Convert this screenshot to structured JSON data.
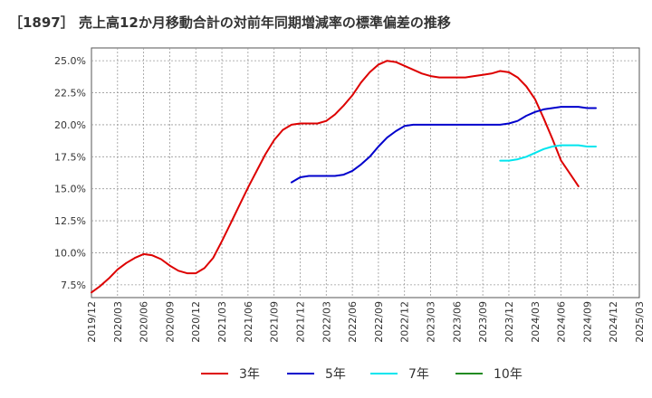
{
  "chart_data": {
    "type": "line",
    "title": "［1897］ 売上高12か月移動合計の対前年同期増減率の標準偏差の推移",
    "xlabel": "",
    "ylabel": "",
    "ylim": [
      6.5,
      26.0
    ],
    "yticks": [
      7.5,
      10.0,
      12.5,
      15.0,
      17.5,
      20.0,
      22.5,
      25.0
    ],
    "ytick_labels": [
      "7.5%",
      "10.0%",
      "12.5%",
      "15.0%",
      "17.5%",
      "20.0%",
      "22.5%",
      "25.0%"
    ],
    "xticks": [
      "2019/12",
      "2020/03",
      "2020/06",
      "2020/09",
      "2020/12",
      "2021/03",
      "2021/06",
      "2021/09",
      "2021/12",
      "2022/03",
      "2022/06",
      "2022/09",
      "2022/12",
      "2023/03",
      "2023/06",
      "2023/09",
      "2023/12",
      "2024/03",
      "2024/06",
      "2024/09",
      "2024/12",
      "2025/03"
    ],
    "x_start": "2019/12",
    "grid": true,
    "legend_position": "bottom",
    "series": [
      {
        "name": "3年",
        "color": "#dd0000",
        "start_index": 0,
        "values": [
          6.9,
          7.4,
          8.0,
          8.7,
          9.2,
          9.6,
          9.9,
          9.8,
          9.5,
          9.0,
          8.6,
          8.4,
          8.4,
          8.8,
          9.6,
          10.9,
          12.3,
          13.7,
          15.1,
          16.4,
          17.7,
          18.8,
          19.6,
          20.0,
          20.1,
          20.1,
          20.1,
          20.3,
          20.8,
          21.5,
          22.3,
          23.3,
          24.1,
          24.7,
          25.0,
          24.9,
          24.6,
          24.3,
          24.0,
          23.8,
          23.7,
          23.7,
          23.7,
          23.7,
          23.8,
          23.9,
          24.0,
          24.2,
          24.1,
          23.7,
          23.0,
          22.0,
          20.5,
          18.9,
          17.2,
          16.2,
          15.2
        ]
      },
      {
        "name": "5年",
        "color": "#0000cc",
        "start_index": 23,
        "values": [
          15.5,
          15.9,
          16.0,
          16.0,
          16.0,
          16.0,
          16.1,
          16.4,
          16.9,
          17.5,
          18.3,
          19.0,
          19.5,
          19.9,
          20.0,
          20.0,
          20.0,
          20.0,
          20.0,
          20.0,
          20.0,
          20.0,
          20.0,
          20.0,
          20.0,
          20.1,
          20.3,
          20.7,
          21.0,
          21.2,
          21.3,
          21.4,
          21.4,
          21.4,
          21.3,
          21.3
        ]
      },
      {
        "name": "7年",
        "color": "#00e5ee",
        "start_index": 47,
        "values": [
          17.2,
          17.2,
          17.3,
          17.5,
          17.8,
          18.1,
          18.3,
          18.4,
          18.4,
          18.4,
          18.3,
          18.3
        ]
      },
      {
        "name": "10年",
        "color": "#228b22",
        "start_index": 0,
        "values": []
      }
    ]
  }
}
